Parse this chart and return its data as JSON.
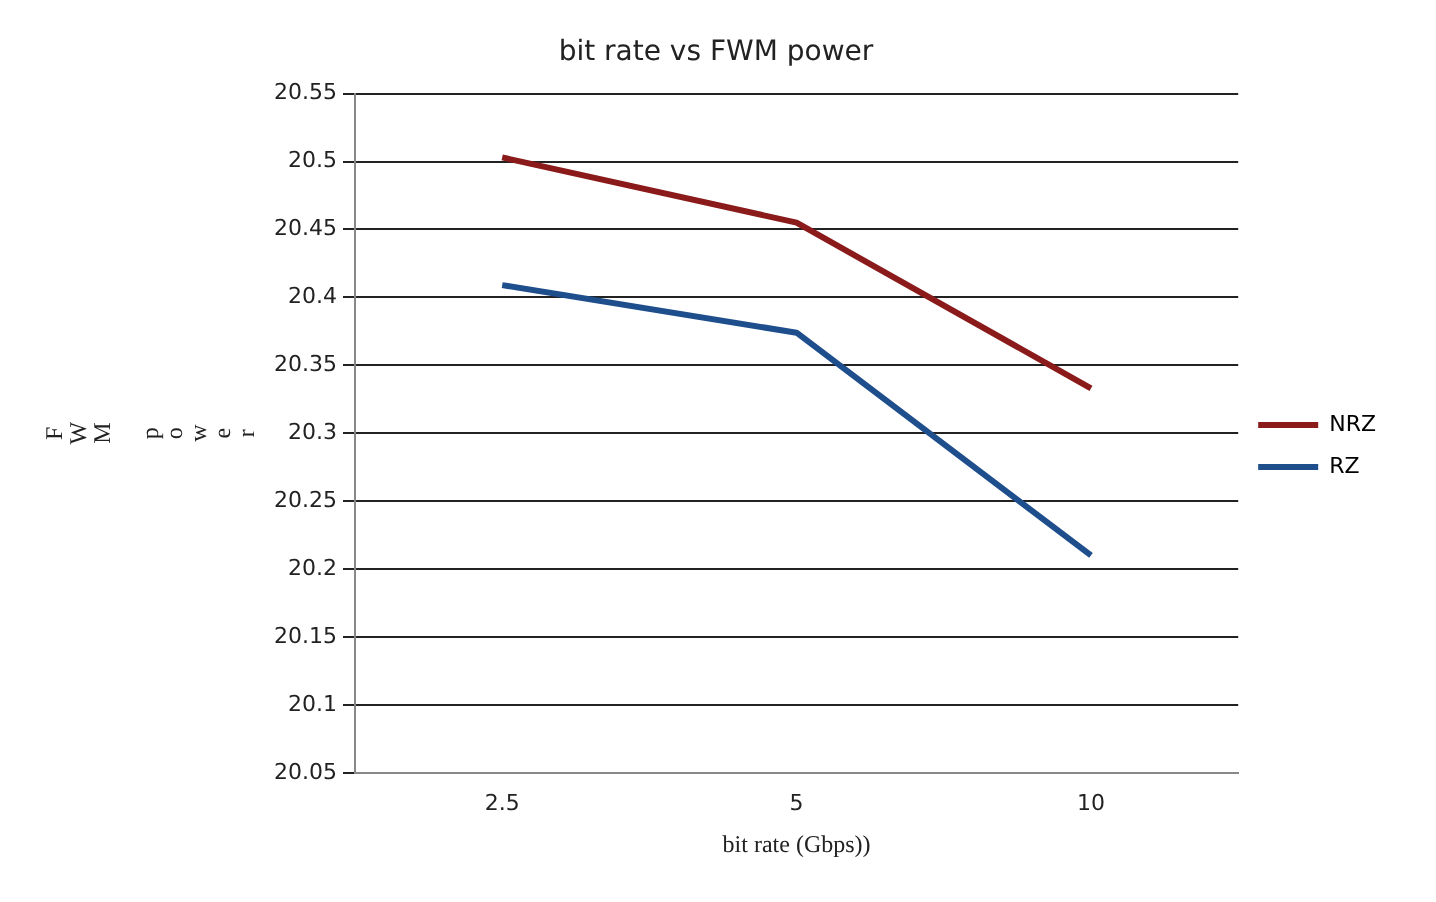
{
  "chart_data": {
    "type": "line",
    "title": "bit rate vs FWM power",
    "xlabel": "bit rate (Gbps))",
    "ylabel": "FWM power",
    "categories": [
      "2.5",
      "5",
      "10"
    ],
    "series": [
      {
        "name": "NRZ",
        "color": "#8b1a1a",
        "values": [
          20.503,
          20.455,
          20.333
        ]
      },
      {
        "name": "RZ",
        "color": "#1f4e8c",
        "values": [
          20.409,
          20.374,
          20.21
        ]
      }
    ],
    "ylim": [
      20.05,
      20.55
    ],
    "yticks": [
      20.05,
      20.1,
      20.15,
      20.2,
      20.25,
      20.3,
      20.35,
      20.4,
      20.45,
      20.5,
      20.55
    ],
    "grid": "y",
    "legend": "right",
    "marker": "none"
  }
}
